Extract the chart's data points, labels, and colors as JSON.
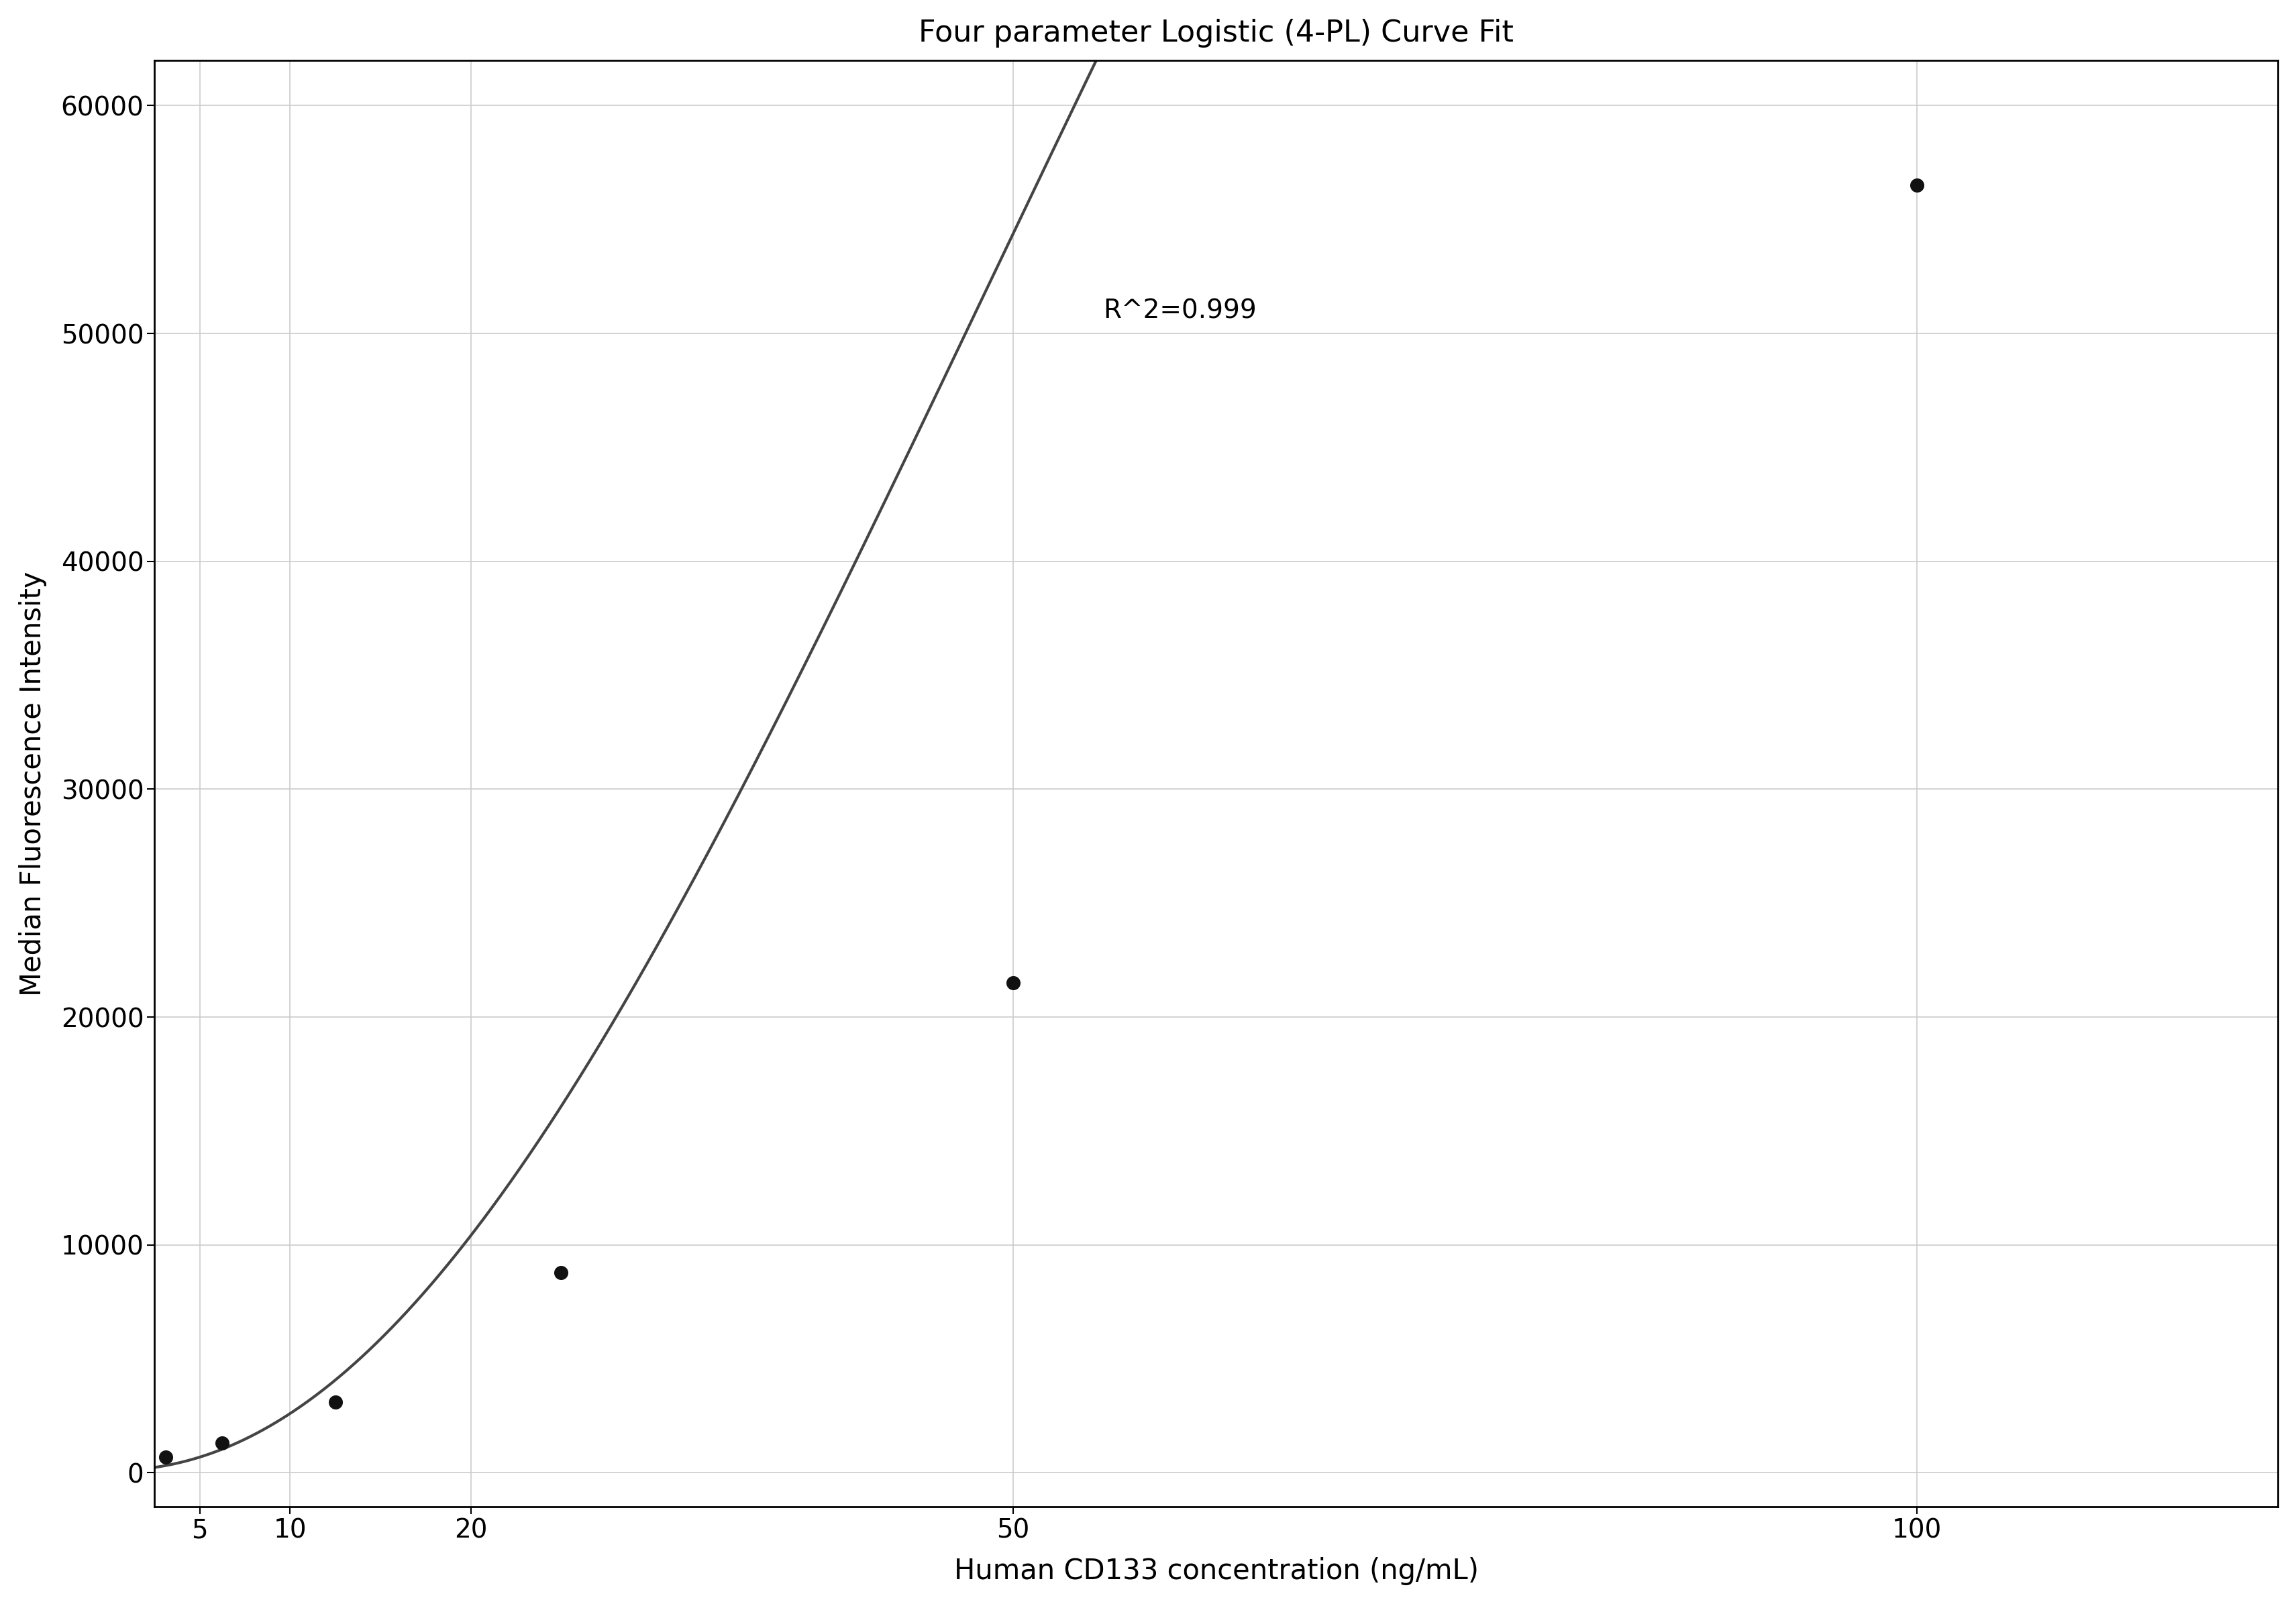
{
  "title": "Four parameter Logistic (4-PL) Curve Fit",
  "xlabel": "Human CD133 concentration (ng/mL)",
  "ylabel": "Median Fluorescence Intensity",
  "data_x": [
    3.125,
    6.25,
    12.5,
    25,
    50,
    100
  ],
  "data_y": [
    700,
    1300,
    3100,
    8800,
    21500,
    56500
  ],
  "r_squared": "R^2=0.999",
  "r_squared_x": 55,
  "r_squared_y": 51000,
  "xlim": [
    2.5,
    120
  ],
  "ylim": [
    -1500,
    62000
  ],
  "yticks": [
    0,
    10000,
    20000,
    30000,
    40000,
    50000,
    60000
  ],
  "xticks": [
    5,
    10,
    20,
    50,
    100
  ],
  "curve_color": "#444444",
  "dot_color": "#111111",
  "dot_size": 200,
  "background_color": "#ffffff",
  "grid_color": "#cccccc",
  "title_fontsize": 32,
  "label_fontsize": 30,
  "tick_fontsize": 28,
  "annotation_fontsize": 28,
  "4pl_A": 100,
  "4pl_B": 2.1,
  "4pl_C": 80,
  "4pl_D": 200000
}
